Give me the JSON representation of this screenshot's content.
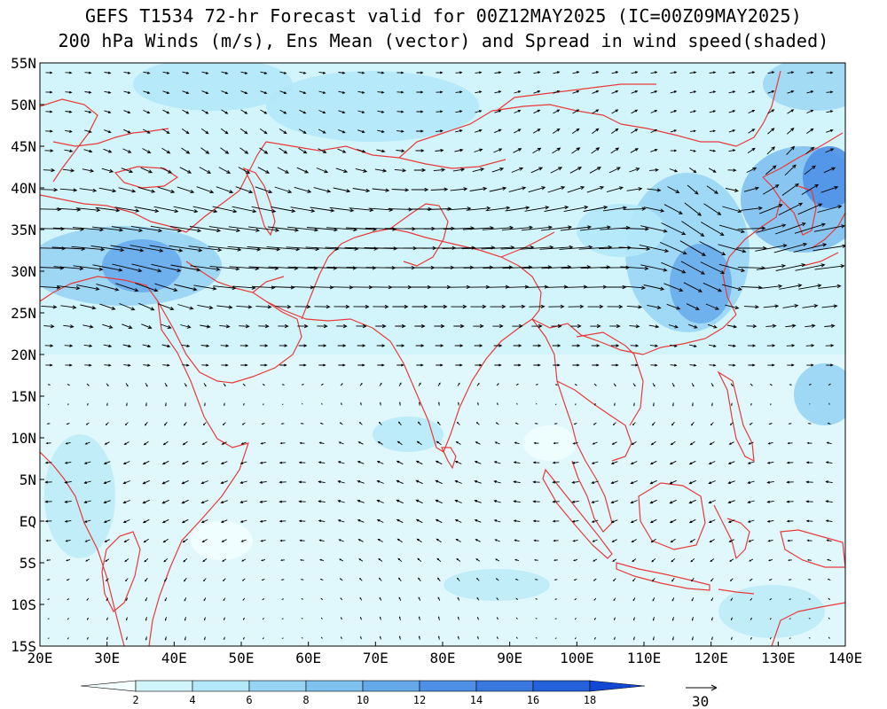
{
  "title_line1": "GEFS T1534 72-hr Forecast valid for 00Z12MAY2025 (IC=00Z09MAY2025)",
  "title_line2": "200 hPa Winds (m/s), Ens Mean (vector) and Spread in wind speed(shaded)",
  "lat_labels": [
    "55N",
    "50N",
    "45N",
    "40N",
    "35N",
    "30N",
    "25N",
    "20N",
    "15N",
    "10N",
    "5N",
    "EQ",
    "5S",
    "10S",
    "15S"
  ],
  "lon_labels": [
    "20E",
    "30E",
    "40E",
    "50E",
    "60E",
    "70E",
    "80E",
    "90E",
    "100E",
    "110E",
    "120E",
    "130E",
    "140E"
  ],
  "colorbar": {
    "ticks": [
      "2",
      "4",
      "6",
      "8",
      "10",
      "12",
      "14",
      "16",
      "18"
    ],
    "colors": [
      "#f4ffff",
      "#d2f5fb",
      "#b3e8f8",
      "#97d4f3",
      "#7fc1ef",
      "#66a9eb",
      "#4f90e6",
      "#3a78e0",
      "#2560db",
      "#1248d4"
    ]
  },
  "reference_vector": "30",
  "colors": {
    "coast": "#e83a3a",
    "arrow": "#000000"
  }
}
